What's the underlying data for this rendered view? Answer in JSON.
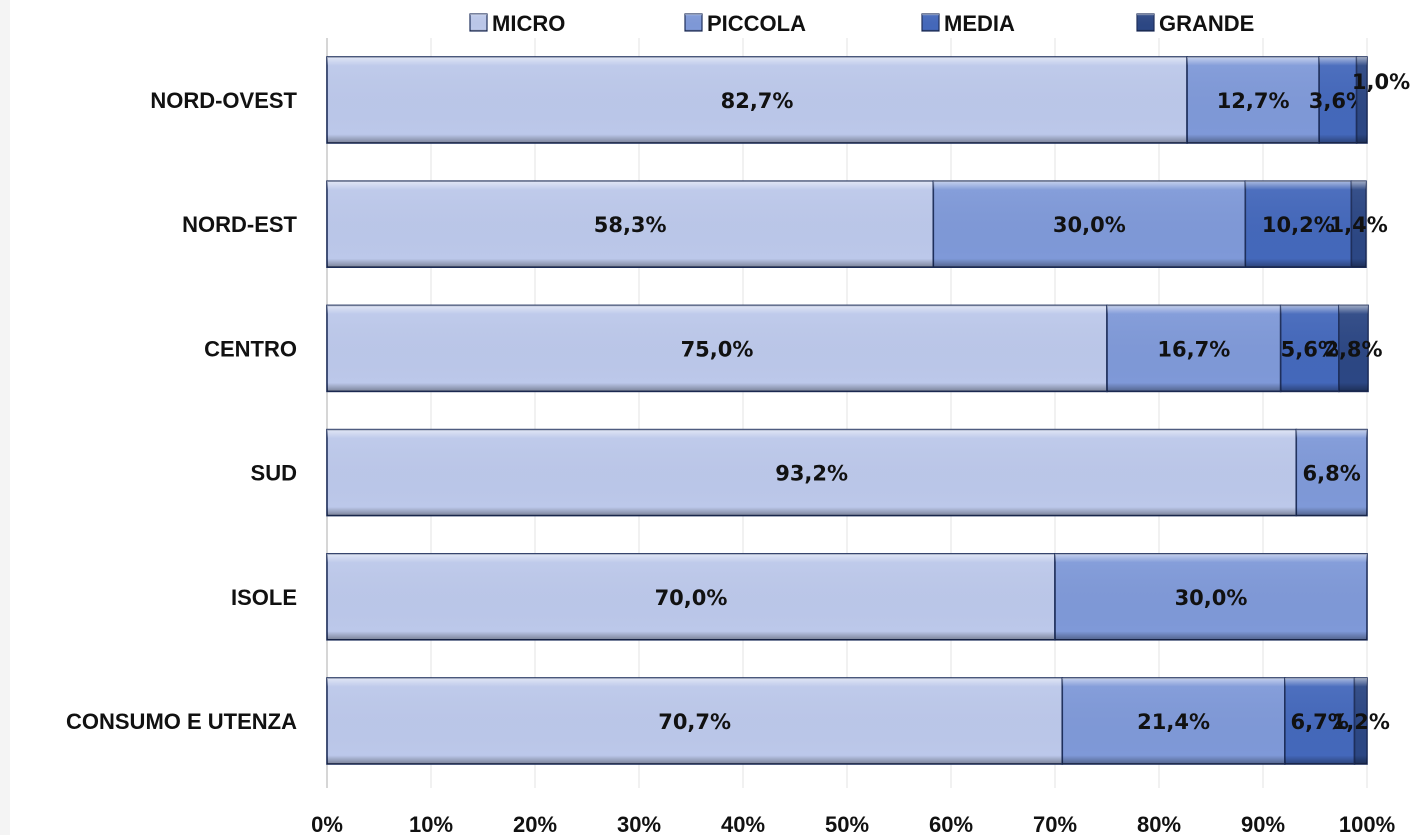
{
  "chart_data": {
    "type": "bar",
    "orientation": "horizontal",
    "stacked": true,
    "percent_stacked": true,
    "title": "",
    "xlabel": "",
    "ylabel": "",
    "xlim": [
      0,
      100
    ],
    "grid": true,
    "legend_position": "top",
    "categories": [
      "NORD-OVEST",
      "NORD-EST",
      "CENTRO",
      "SUD",
      "ISOLE",
      "CONSUMO E UTENZA"
    ],
    "x_tick_labels": [
      "0%",
      "10%",
      "20%",
      "30%",
      "40%",
      "50%",
      "60%",
      "70%",
      "80%",
      "90%",
      "100%"
    ],
    "series": [
      {
        "name": "MICRO",
        "color": "#bcc8ea",
        "values": [
          82.7,
          58.3,
          75.0,
          93.2,
          70.0,
          70.7
        ],
        "labels": [
          "82,7%",
          "58,3%",
          "75,0%",
          "93,2%",
          "70,0%",
          "70,7%"
        ]
      },
      {
        "name": "PICCOLA",
        "color": "#7f99d8",
        "values": [
          12.7,
          30.0,
          16.7,
          6.8,
          30.0,
          21.4
        ],
        "labels": [
          "12,7%",
          "30,0%",
          "16,7%",
          "6,8%",
          "30,0%",
          "21,4%"
        ]
      },
      {
        "name": "MEDIA",
        "color": "#4468bb",
        "values": [
          3.6,
          10.2,
          5.6,
          0,
          0,
          6.7
        ],
        "labels": [
          "3,6%",
          "10,2%",
          "5,6%",
          "",
          "",
          "6,7%"
        ]
      },
      {
        "name": "GRANDE",
        "color": "#2c4784",
        "values": [
          1.0,
          1.4,
          2.8,
          0,
          0,
          1.2
        ],
        "labels": [
          "1,0%",
          "1,4%",
          "2,8%",
          "",
          "",
          "1,2%"
        ]
      }
    ]
  }
}
